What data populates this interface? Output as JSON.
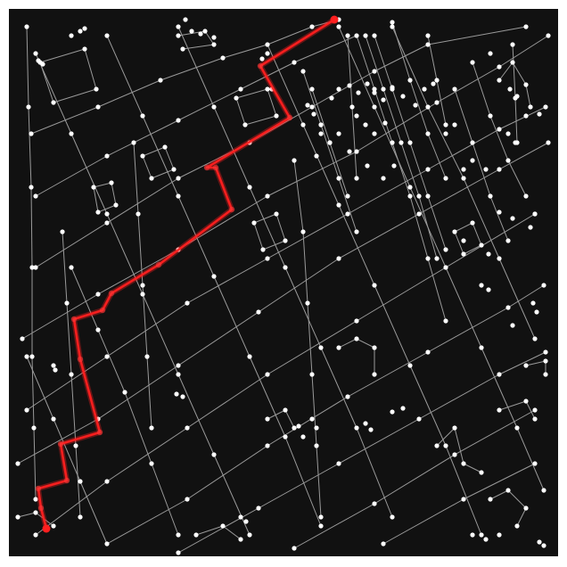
{
  "map": {
    "background_color": "#111111",
    "street_color": "#9a9a9a",
    "node_color": "#ffffff",
    "route_color": "#ff1f1f"
  }
}
